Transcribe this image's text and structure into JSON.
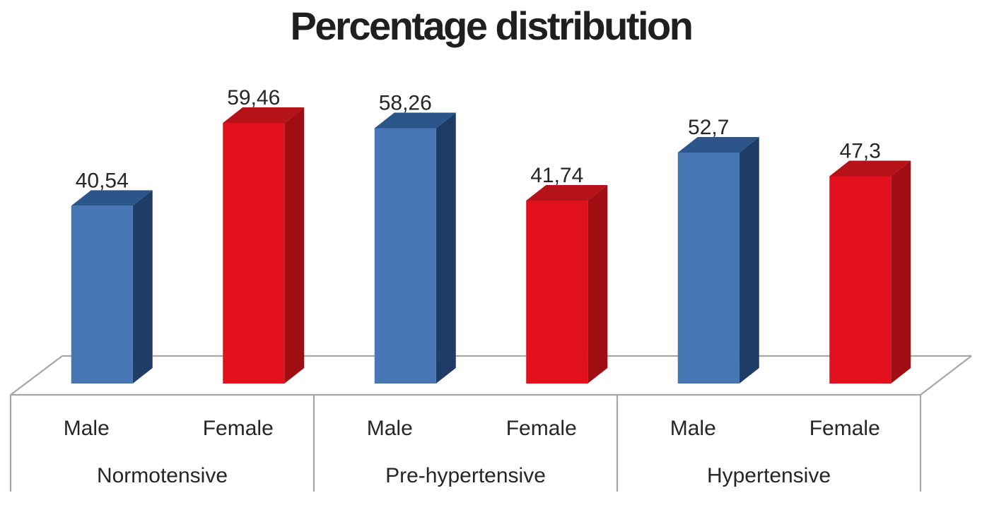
{
  "title": "Percentage distribution",
  "chart_data": {
    "type": "bar",
    "style": "3d",
    "title": "Percentage distribution",
    "legend": "none",
    "grid": false,
    "value_axis_visible": false,
    "ylim": [
      0,
      70
    ],
    "decimal_separator": ",",
    "categories": [
      "Male",
      "Female"
    ],
    "series": [
      {
        "name": "Male",
        "color": "#4677B4"
      },
      {
        "name": "Female",
        "color": "#E2101D"
      }
    ],
    "groups": [
      {
        "label": "Normotensive",
        "bars": [
          {
            "category": "Male",
            "value": 40.54,
            "label": "40,54"
          },
          {
            "category": "Female",
            "value": 59.46,
            "label": "59,46"
          }
        ]
      },
      {
        "label": "Pre-hypertensive",
        "bars": [
          {
            "category": "Male",
            "value": 58.26,
            "label": "58,26"
          },
          {
            "category": "Female",
            "value": 41.74,
            "label": "41,74"
          }
        ]
      },
      {
        "label": "Hypertensive",
        "bars": [
          {
            "category": "Male",
            "value": 52.7,
            "label": "52,7"
          },
          {
            "category": "Female",
            "value": 47.3,
            "label": "47,3"
          }
        ]
      }
    ]
  },
  "colors": {
    "male_front": "#4677B4",
    "male_top": "#2C568A",
    "male_side": "#1E3C66",
    "female_front": "#E2101D",
    "female_top": "#B5121A",
    "female_side": "#A00D12",
    "axis_line": "#A6A6A6",
    "text": "#262626",
    "title": "#1F1F1F",
    "background": "#FFFFFF"
  }
}
